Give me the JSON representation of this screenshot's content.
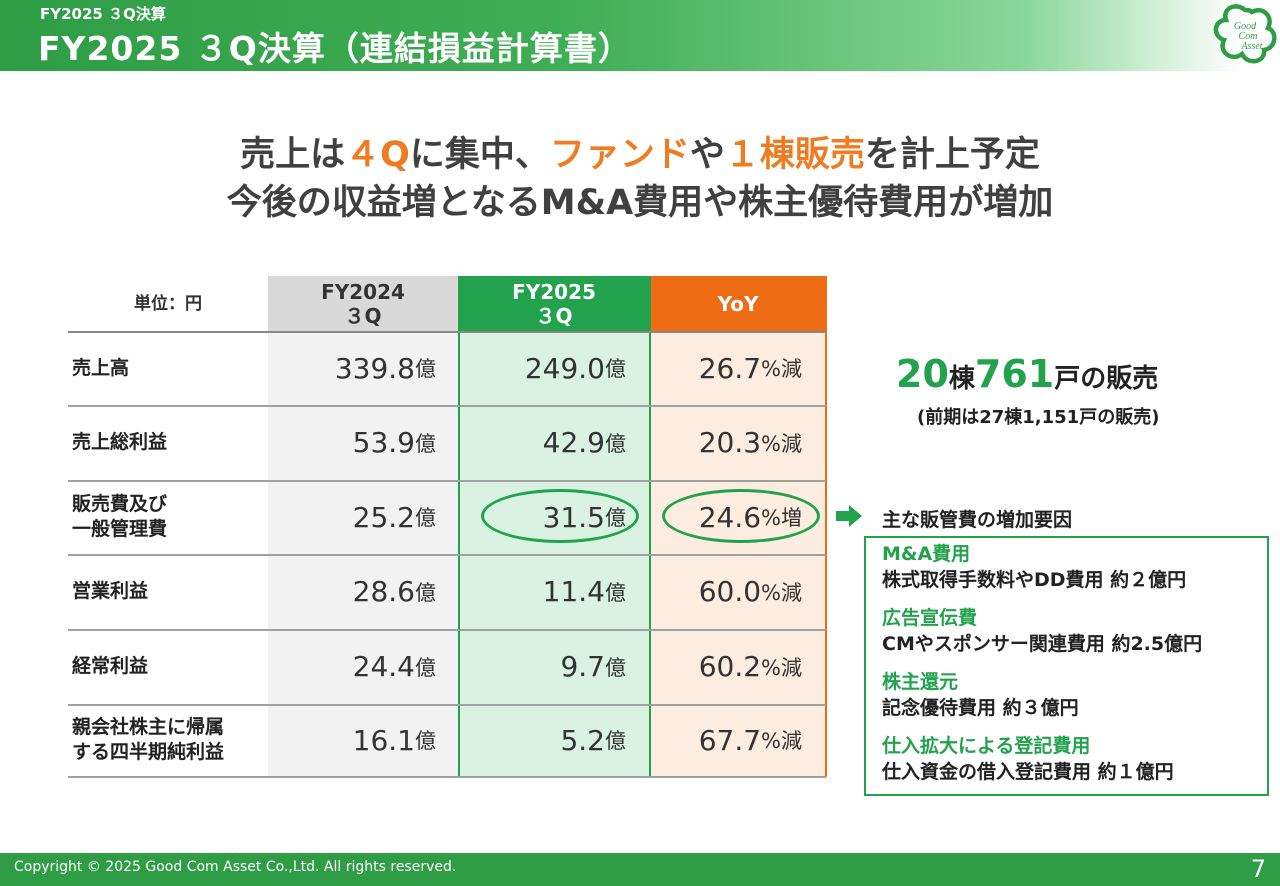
{
  "header": {
    "breadcrumb": "FY2025 ３Q決算",
    "title": "FY2025 ３Q決算（連結損益計算書）",
    "logo_lines": [
      "Good",
      "Com",
      "Asset"
    ]
  },
  "headline": {
    "line1": [
      {
        "text": "売上は",
        "accent": false
      },
      {
        "text": "４Q",
        "accent": true
      },
      {
        "text": "に集中、",
        "accent": false
      },
      {
        "text": "ファンド",
        "accent": true
      },
      {
        "text": "や",
        "accent": false
      },
      {
        "text": "１棟販売",
        "accent": true
      },
      {
        "text": "を計上予定",
        "accent": false
      }
    ],
    "line2": "今後の収益増となるM&A費用や株主優待費用が増加"
  },
  "table": {
    "unit_label": "単位：円",
    "headers": [
      {
        "line1": "FY2024",
        "line2": "３Q"
      },
      {
        "line1": "FY2025",
        "line2": "３Q"
      },
      {
        "line1": "YoY",
        "line2": ""
      }
    ],
    "rows": [
      {
        "label": [
          "売上高"
        ],
        "fy2024": "339.8",
        "fy2025": "249.0",
        "yoy": "26.7",
        "yoy_suffix": "%減"
      },
      {
        "label": [
          "売上総利益"
        ],
        "fy2024": "53.9",
        "fy2025": "42.9",
        "yoy": "20.3",
        "yoy_suffix": "%減"
      },
      {
        "label": [
          "販売費及び",
          "一般管理費"
        ],
        "fy2024": "25.2",
        "fy2025": "31.5",
        "yoy": "24.6",
        "yoy_suffix": "%増"
      },
      {
        "label": [
          "営業利益"
        ],
        "fy2024": "28.6",
        "fy2025": "11.4",
        "yoy": "60.0",
        "yoy_suffix": "%減"
      },
      {
        "label": [
          "経常利益"
        ],
        "fy2024": "24.4",
        "fy2025": "9.7",
        "yoy": "60.2",
        "yoy_suffix": "%減"
      },
      {
        "label": [
          "親会社株主に帰属",
          "する四半期純利益"
        ],
        "fy2024": "16.1",
        "fy2025": "5.2",
        "yoy": "67.7",
        "yoy_suffix": "%減"
      }
    ],
    "value_unit": "億"
  },
  "sales": {
    "buildings": "20",
    "buildings_unit": "棟",
    "units": "761",
    "units_suffix": "戸の販売",
    "previous": "(前期は27棟1,151戸の販売)"
  },
  "factors": {
    "title": "主な販管費の増加要因",
    "items": [
      {
        "name": "M&A費用",
        "desc": "株式取得手数料やDD費用 約２億円"
      },
      {
        "name": "広告宣伝費",
        "desc": "CMやスポンサー関連費用 約2.5億円"
      },
      {
        "name": "株主還元",
        "desc": "記念優待費用 約３億円"
      },
      {
        "name": "仕入拡大による登記費用",
        "desc": "仕入資金の借入登記費用 約１億円"
      }
    ]
  },
  "colors": {
    "brand_green": "#2e9d45",
    "highlight_green": "#23a24d",
    "accent_orange": "#ee7c22",
    "fy2024_header": "#d9d9d9",
    "fy2024_body": "#f2f2f2",
    "fy2025_body": "#d9f2e1",
    "yoy_body": "#fdece0"
  },
  "footer": {
    "copyright": "Copyright © 2025 Good Com Asset Co.,Ltd. All rights reserved.",
    "page_number": "7"
  }
}
